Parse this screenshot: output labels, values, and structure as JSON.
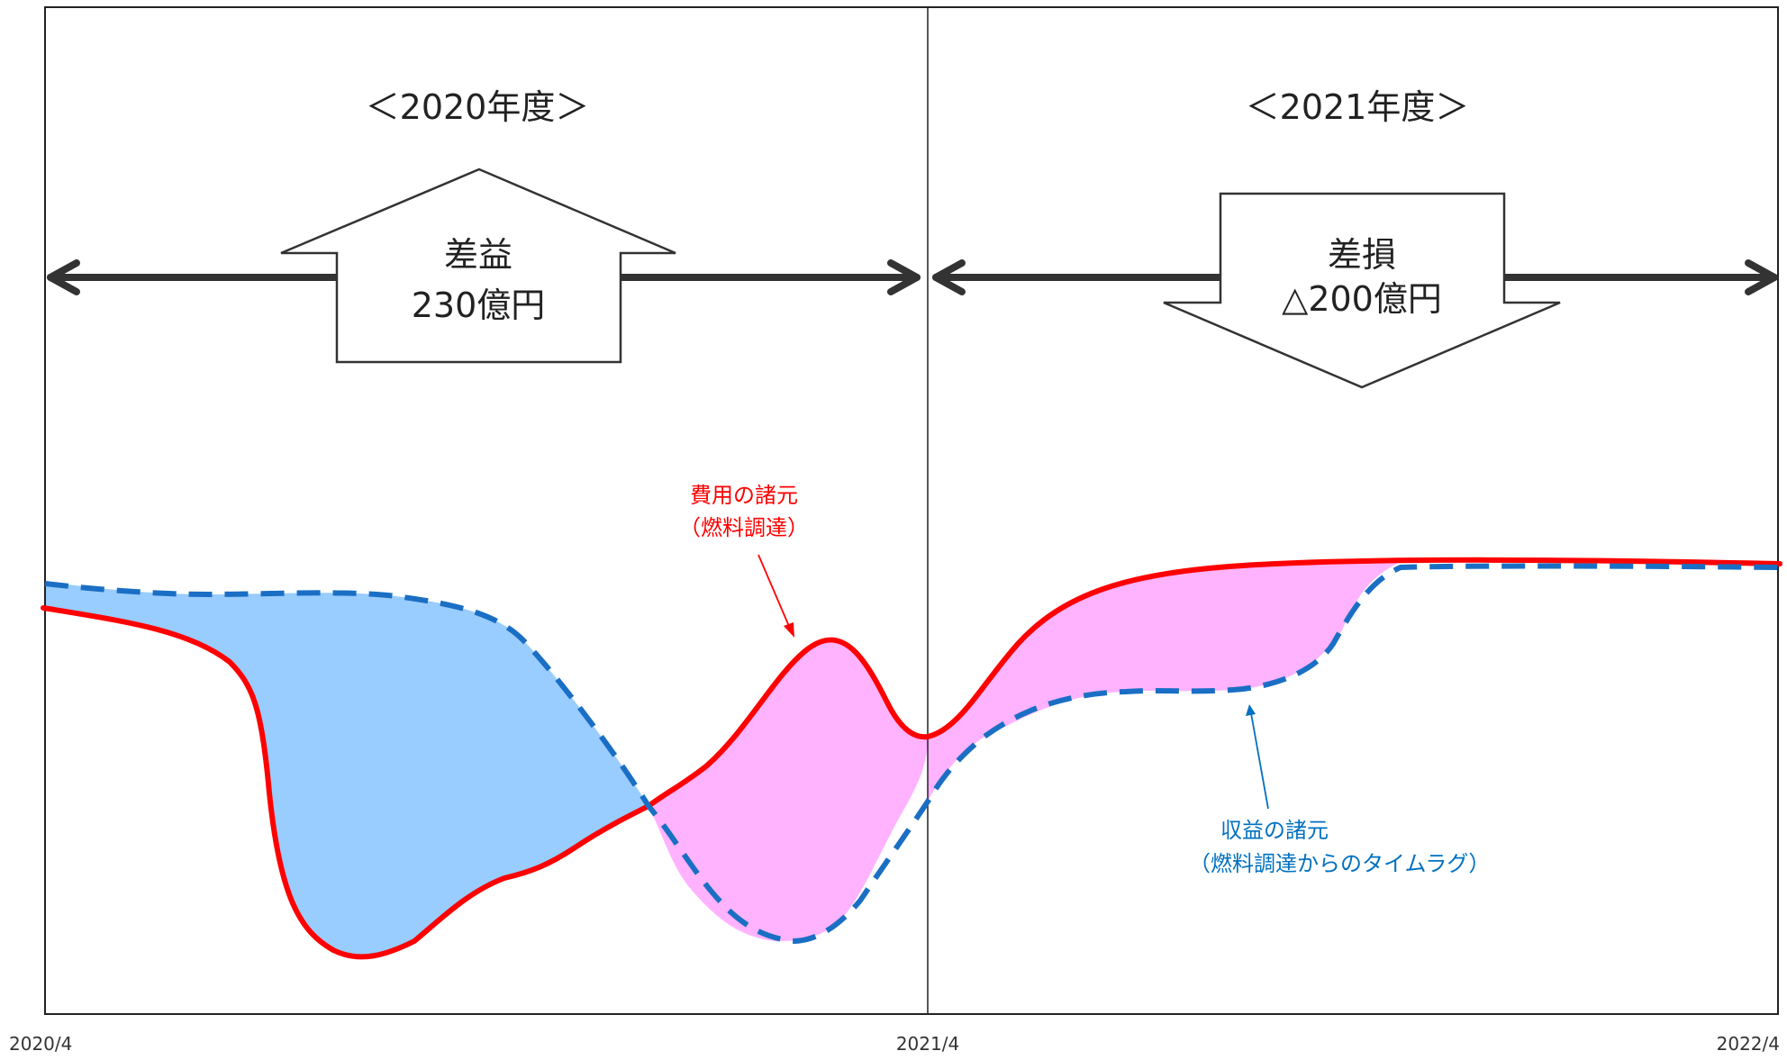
{
  "periods": {
    "left": "＜2020年度＞",
    "right": "＜2021年度＞"
  },
  "profit_box": {
    "line1": "差益",
    "line2": "230億円"
  },
  "loss_box": {
    "line1": "差損",
    "line2": "△200億円"
  },
  "annotations": {
    "cost": {
      "line1": "費用の諸元",
      "line2": "（燃料調達）"
    },
    "revenue": {
      "line1": "収益の諸元",
      "line2": "（燃料調達からのタイムラグ）"
    }
  },
  "x_ticks": [
    "2020/4",
    "2021/4",
    "2022/4"
  ],
  "series": [
    {
      "name": "費用の諸元（燃料調達）",
      "style": "solid",
      "color": "#ff0000"
    },
    {
      "name": "収益の諸元（燃料調達からのタイムラグ）",
      "style": "dashed",
      "color": "#1a6fc4"
    }
  ],
  "fills": {
    "gain_color": "#99ccff",
    "loss_color": "#ffb3ff"
  }
}
